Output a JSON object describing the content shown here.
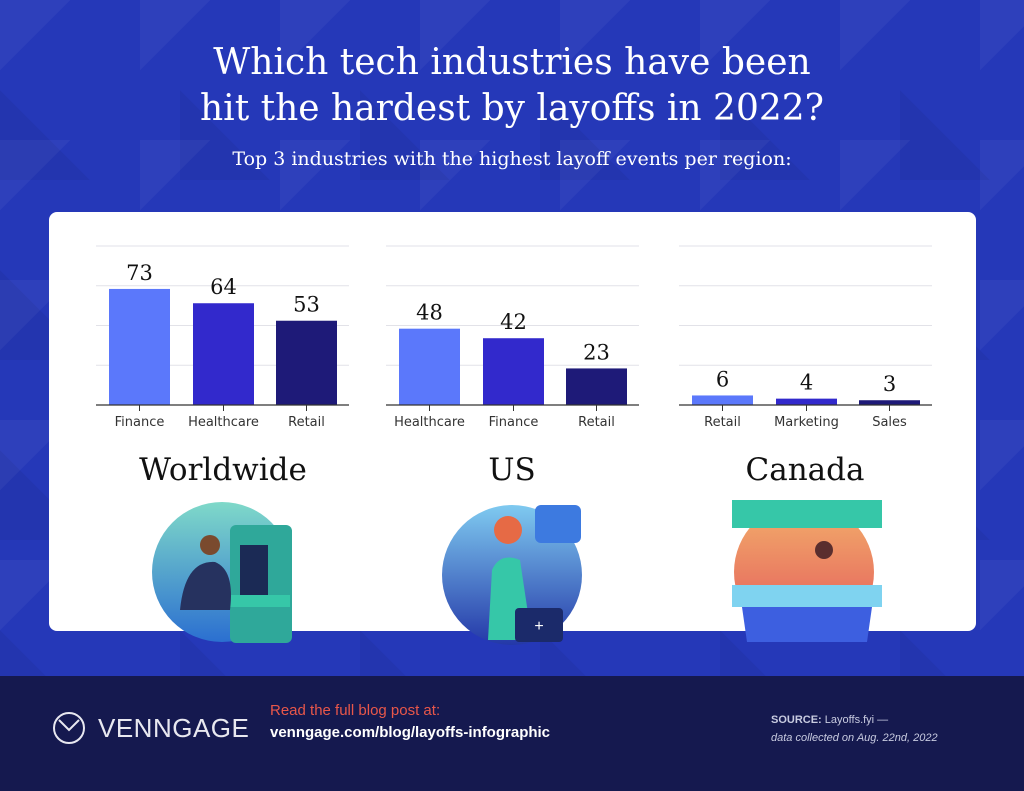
{
  "header": {
    "title_line1": "Which tech industries have been",
    "title_line2": "hit the hardest by layoffs in 2022?",
    "subtitle": "Top 3 industries with the highest layoff events per region:"
  },
  "chart_data": [
    {
      "type": "bar",
      "title": "Worldwide",
      "categories": [
        "Finance",
        "Healthcare",
        "Retail"
      ],
      "values": [
        73,
        64,
        53
      ],
      "ylim": [
        0,
        100
      ],
      "grid": true,
      "colors": [
        "#5b78fb",
        "#3229cc",
        "#1e1a78"
      ]
    },
    {
      "type": "bar",
      "title": "US",
      "categories": [
        "Healthcare",
        "Finance",
        "Retail"
      ],
      "values": [
        48,
        42,
        23
      ],
      "ylim": [
        0,
        100
      ],
      "grid": true,
      "colors": [
        "#5b78fb",
        "#3229cc",
        "#1e1a78"
      ]
    },
    {
      "type": "bar",
      "title": "Canada",
      "categories": [
        "Retail",
        "Marketing",
        "Sales"
      ],
      "values": [
        6,
        4,
        3
      ],
      "ylim": [
        0,
        100
      ],
      "grid": true,
      "colors": [
        "#5b78fb",
        "#3229cc",
        "#1e1a78"
      ]
    }
  ],
  "footer": {
    "brand": "VENNGAGE",
    "read_label": "Read the full blog post at:",
    "url": "venngage.com/blog/layoffs-infographic",
    "source_label": "SOURCE:",
    "source_value": "Layoffs.fyi —",
    "source_note": "data collected on Aug. 22nd, 2022"
  },
  "colors": {
    "background": "#2538b8",
    "footer": "#15194f",
    "accent": "#e9574a"
  }
}
